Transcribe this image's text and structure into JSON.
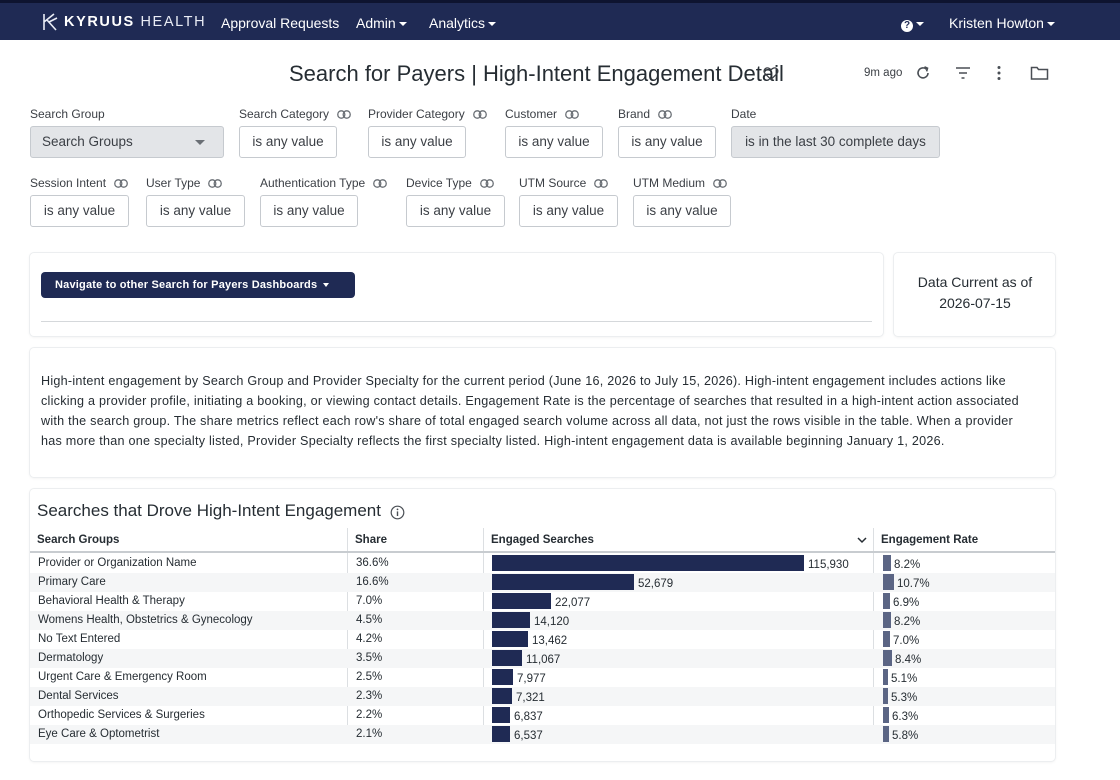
{
  "nav": {
    "brand_strong": "KYRUUS",
    "brand_light": "HEALTH",
    "items": [
      "Approval Requests",
      "Admin",
      "Analytics"
    ],
    "user": "Kristen Howton",
    "help": "?"
  },
  "header": {
    "title": "Search for Payers | High-Intent Engagement Detail",
    "updated": "9m ago"
  },
  "filters": [
    {
      "label": "Search Group",
      "value": "Search Groups"
    },
    {
      "label": "Search Category",
      "value": "is any value"
    },
    {
      "label": "Provider Category",
      "value": "is any value"
    },
    {
      "label": "Customer",
      "value": "is any value"
    },
    {
      "label": "Brand",
      "value": "is any value"
    },
    {
      "label": "Date",
      "value": "is in the last 30 complete days"
    },
    {
      "label": "Session Intent",
      "value": "is any value"
    },
    {
      "label": "User Type",
      "value": "is any value"
    },
    {
      "label": "Authentication Type",
      "value": "is any value"
    },
    {
      "label": "Device Type",
      "value": "is any value"
    },
    {
      "label": "UTM Source",
      "value": "is any value"
    },
    {
      "label": "UTM Medium",
      "value": "is any value"
    }
  ],
  "navigate_button": "Navigate to other Search for Payers Dashboards",
  "data_current": {
    "line1": "Data Current as of",
    "line2": "2026-07-15"
  },
  "description": "High-intent engagement by Search Group and Provider Specialty for the current period (June 16, 2026 to July 15, 2026). High-intent engagement includes actions like clicking a provider profile, initiating a booking, or viewing contact details. Engagement Rate is the percentage of searches that resulted in a high-intent action associated with the search group. The share metrics reflect each row's share of total engaged search volume across all data, not just the rows visible in the table. When a provider has more than one specialty listed, Provider Specialty reflects the first specialty listed. High-intent engagement data is available beginning January 1, 2026.",
  "table": {
    "title": "Searches that Drove High-Intent Engagement",
    "columns": [
      "Search Groups",
      "Share",
      "Engaged Searches",
      "Engagement Rate"
    ],
    "rows": [
      {
        "group": "Provider or Organization Name",
        "share": "36.6%",
        "engaged": "115,930",
        "engaged_value": 115930,
        "rate": "8.2%",
        "rate_value": 8.2
      },
      {
        "group": "Primary Care",
        "share": "16.6%",
        "engaged": "52,679",
        "engaged_value": 52679,
        "rate": "10.7%",
        "rate_value": 10.7
      },
      {
        "group": "Behavioral Health & Therapy",
        "share": "7.0%",
        "engaged": "22,077",
        "engaged_value": 22077,
        "rate": "6.9%",
        "rate_value": 6.9
      },
      {
        "group": "Womens Health, Obstetrics & Gynecology",
        "share": "4.5%",
        "engaged": "14,120",
        "engaged_value": 14120,
        "rate": "8.2%",
        "rate_value": 8.2
      },
      {
        "group": "No Text Entered",
        "share": "4.2%",
        "engaged": "13,462",
        "engaged_value": 13462,
        "rate": "7.0%",
        "rate_value": 7.0
      },
      {
        "group": "Dermatology",
        "share": "3.5%",
        "engaged": "11,067",
        "engaged_value": 11067,
        "rate": "8.4%",
        "rate_value": 8.4
      },
      {
        "group": "Urgent Care & Emergency Room",
        "share": "2.5%",
        "engaged": "7,977",
        "engaged_value": 7977,
        "rate": "5.1%",
        "rate_value": 5.1
      },
      {
        "group": "Dental Services",
        "share": "2.3%",
        "engaged": "7,321",
        "engaged_value": 7321,
        "rate": "5.3%",
        "rate_value": 5.3
      },
      {
        "group": "Orthopedic Services & Surgeries",
        "share": "2.2%",
        "engaged": "6,837",
        "engaged_value": 6837,
        "rate": "6.3%",
        "rate_value": 6.3
      },
      {
        "group": "Eye Care & Optometrist",
        "share": "2.1%",
        "engaged": "6,537",
        "engaged_value": 6537,
        "rate": "5.8%",
        "rate_value": 5.8
      }
    ]
  },
  "colors": {
    "nav_bg": "#1f2a54",
    "bar": "#1f2a54",
    "rate_bar": "#5b6584"
  }
}
